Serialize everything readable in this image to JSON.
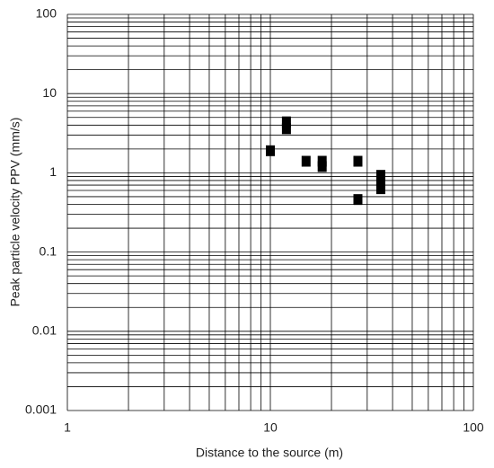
{
  "chart_data": {
    "type": "scatter",
    "x_label": "Distance to the source (m)",
    "y_label": "Peak particle velocity PPV  (mm/s)",
    "x_log": true,
    "y_log": true,
    "grid": true,
    "color": "#000000",
    "x": [
      10,
      12,
      12,
      15,
      18,
      18,
      27,
      27,
      35,
      35,
      35
    ],
    "values": [
      1.9,
      4.4,
      3.6,
      1.4,
      1.4,
      1.2,
      1.4,
      0.46,
      0.93,
      0.76,
      0.63
    ],
    "xlim": [
      1,
      100
    ],
    "xticks": [
      1,
      10,
      100
    ],
    "ylim": [
      0.001,
      100
    ],
    "yticks": [
      0.001,
      0.01,
      0.1,
      1,
      10,
      100
    ]
  }
}
